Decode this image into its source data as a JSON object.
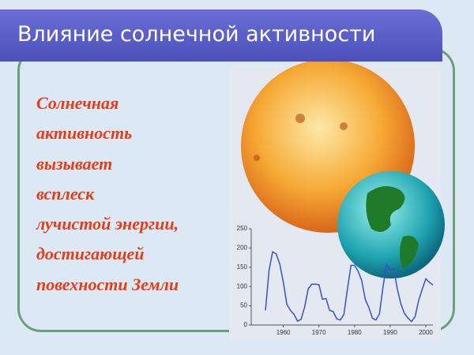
{
  "title": "Влияние солнечной активности",
  "body_lines": [
    "Солнечная",
    "активность",
    "вызывает",
    "всплеск",
    "лучистой энергии,",
    "достигающей",
    "повехности Земли"
  ],
  "sunspot_chart": {
    "type": "line",
    "x": [
      1955,
      1956,
      1957,
      1958,
      1959,
      1960,
      1961,
      1962,
      1963,
      1964,
      1965,
      1966,
      1967,
      1968,
      1969,
      1970,
      1971,
      1972,
      1973,
      1974,
      1975,
      1976,
      1977,
      1978,
      1979,
      1980,
      1981,
      1982,
      1983,
      1984,
      1985,
      1986,
      1987,
      1988,
      1989,
      1990,
      1991,
      1992,
      1993,
      1994,
      1995,
      1996,
      1997,
      1998,
      1999,
      2000,
      2001,
      2002
    ],
    "values": [
      38,
      142,
      190,
      185,
      159,
      112,
      54,
      38,
      28,
      10,
      15,
      47,
      94,
      106,
      106,
      105,
      67,
      69,
      38,
      35,
      16,
      13,
      27,
      93,
      155,
      155,
      140,
      116,
      67,
      46,
      18,
      13,
      29,
      100,
      158,
      142,
      146,
      94,
      55,
      30,
      18,
      9,
      22,
      64,
      93,
      120,
      111,
      104
    ],
    "color": "#3a4fd0",
    "xlim": [
      1951,
      2002
    ],
    "xticks": [
      1960,
      1970,
      1980,
      1990,
      2000
    ],
    "ylim": [
      0,
      250
    ],
    "yticks": [
      0,
      50,
      100,
      150,
      200,
      250
    ]
  }
}
